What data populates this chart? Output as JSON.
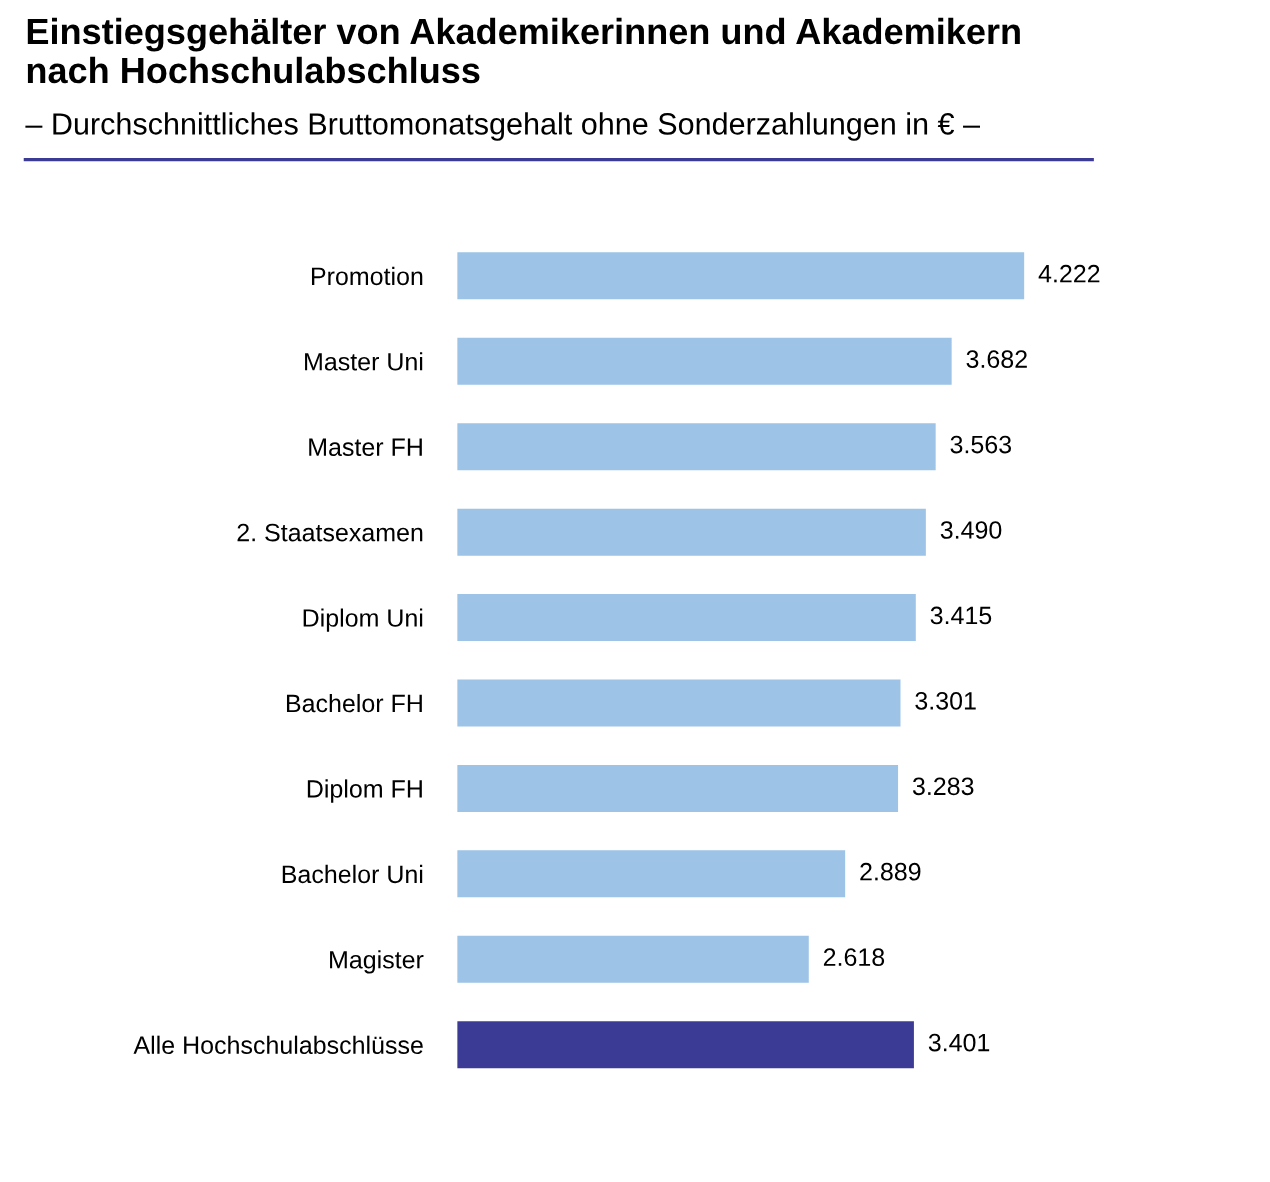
{
  "chart_data": {
    "type": "bar",
    "orientation": "horizontal",
    "title": "Einstiegsgehälter von Akademikerinnen und Akademikern\nnach Hochschulabschluss",
    "subtitle": "– Durchschnittliches Bruttomonatsgehalt ohne Sonderzahlungen in € –",
    "categories": [
      "Promotion",
      "Master Uni",
      "Master FH",
      "2. Staatsexamen",
      "Diplom Uni",
      "Bachelor FH",
      "Diplom FH",
      "Bachelor Uni",
      "Magister",
      "Alle Hochschulabschlüsse"
    ],
    "values": [
      4222,
      3682,
      3563,
      3490,
      3415,
      3301,
      3283,
      2889,
      2618,
      3401
    ],
    "value_labels": [
      "4.222",
      "3.682",
      "3.563",
      "3.490",
      "3.415",
      "3.301",
      "3.283",
      "2.889",
      "2.618",
      "3.401"
    ],
    "colors": [
      "#9dc3e6",
      "#9dc3e6",
      "#9dc3e6",
      "#9dc3e6",
      "#9dc3e6",
      "#9dc3e6",
      "#9dc3e6",
      "#9dc3e6",
      "#9dc3e6",
      "#3b3b96"
    ],
    "grid": false,
    "legend": false
  }
}
